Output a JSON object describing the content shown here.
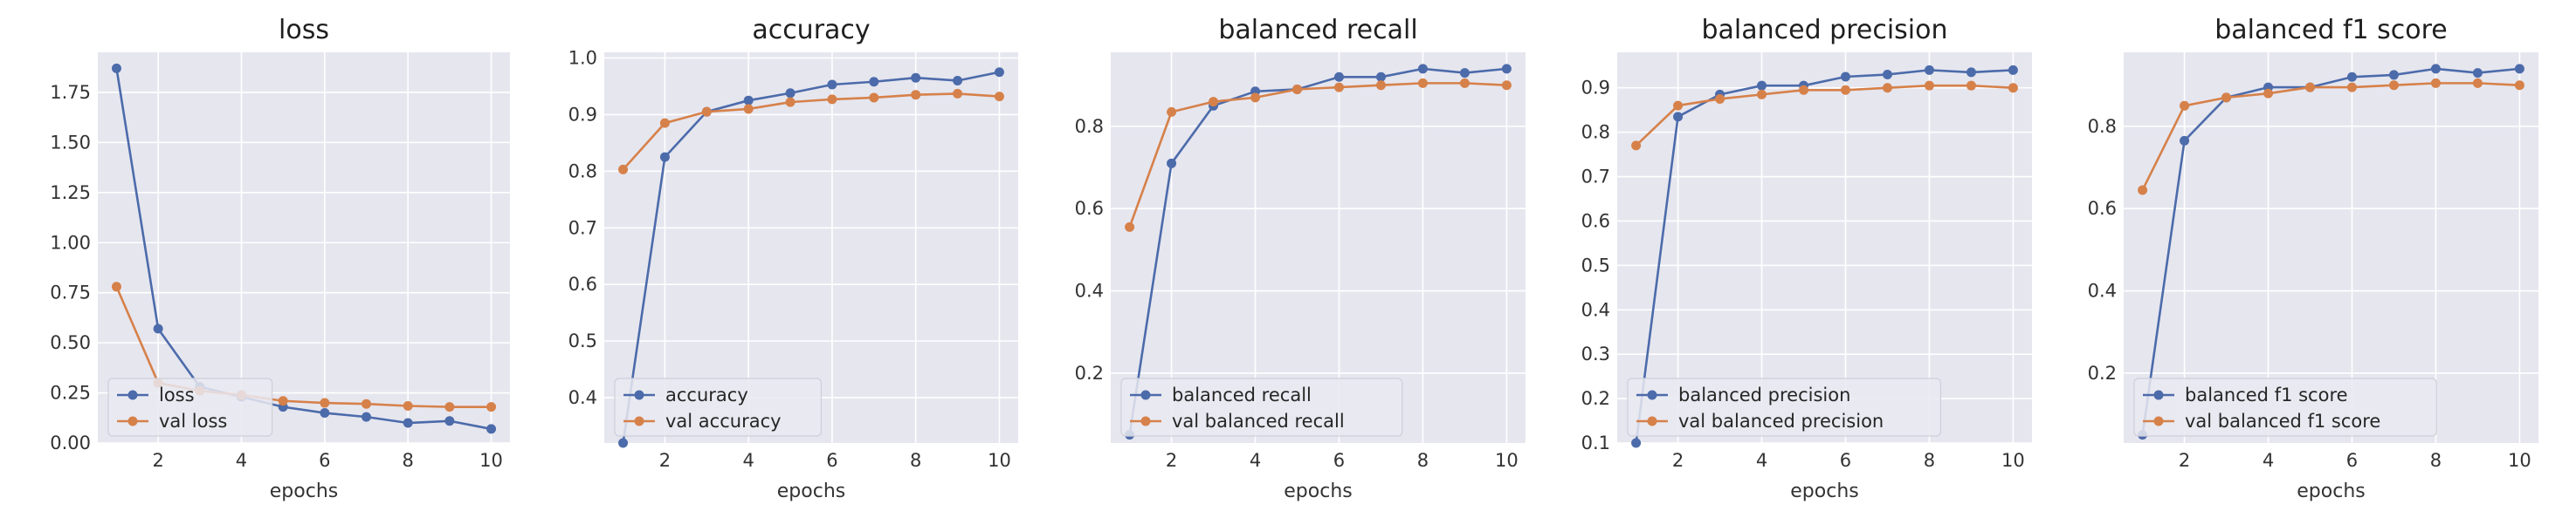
{
  "colors": {
    "train": "#4c6baa",
    "val": "#d6814a"
  },
  "chart_data": [
    {
      "type": "line",
      "title": "loss",
      "xlabel": "epochs",
      "x": [
        1,
        2,
        3,
        4,
        5,
        6,
        7,
        8,
        9,
        10
      ],
      "xticks": [
        "2",
        "4",
        "6",
        "8",
        "10"
      ],
      "ylim": [
        0.0,
        1.95
      ],
      "yticks": [
        "0.00",
        "0.25",
        "0.50",
        "0.75",
        "1.00",
        "1.25",
        "1.50",
        "1.75"
      ],
      "legend_position": "lower-left",
      "series": [
        {
          "name": "loss",
          "values": [
            1.87,
            0.57,
            0.28,
            0.23,
            0.18,
            0.15,
            0.13,
            0.1,
            0.11,
            0.07
          ]
        },
        {
          "name": "val loss",
          "values": [
            0.78,
            0.3,
            0.26,
            0.24,
            0.21,
            0.2,
            0.195,
            0.185,
            0.18,
            0.18
          ]
        }
      ]
    },
    {
      "type": "line",
      "title": "accuracy",
      "xlabel": "epochs",
      "x": [
        1,
        2,
        3,
        4,
        5,
        6,
        7,
        8,
        9,
        10
      ],
      "xticks": [
        "2",
        "4",
        "6",
        "8",
        "10"
      ],
      "ylim": [
        0.32,
        1.01
      ],
      "yticks": [
        "0.4",
        "0.5",
        "0.6",
        "0.7",
        "0.8",
        "0.9",
        "1.0"
      ],
      "legend_position": "lower-left",
      "series": [
        {
          "name": "accuracy",
          "values": [
            0.32,
            0.825,
            0.905,
            0.925,
            0.938,
            0.953,
            0.958,
            0.965,
            0.96,
            0.975
          ]
        },
        {
          "name": "val accuracy",
          "values": [
            0.803,
            0.885,
            0.905,
            0.91,
            0.922,
            0.927,
            0.93,
            0.935,
            0.937,
            0.932
          ]
        }
      ]
    },
    {
      "type": "line",
      "title": "balanced recall",
      "xlabel": "epochs",
      "x": [
        1,
        2,
        3,
        4,
        5,
        6,
        7,
        8,
        9,
        10
      ],
      "xticks": [
        "2",
        "4",
        "6",
        "8",
        "10"
      ],
      "ylim": [
        0.03,
        0.98
      ],
      "yticks": [
        "0.2",
        "0.4",
        "0.6",
        "0.8"
      ],
      "legend_position": "lower-left",
      "series": [
        {
          "name": "balanced recall",
          "values": [
            0.05,
            0.71,
            0.85,
            0.885,
            0.89,
            0.92,
            0.92,
            0.94,
            0.93,
            0.94
          ]
        },
        {
          "name": "val balanced recall",
          "values": [
            0.555,
            0.835,
            0.86,
            0.87,
            0.89,
            0.895,
            0.9,
            0.905,
            0.905,
            0.9
          ]
        }
      ]
    },
    {
      "type": "line",
      "title": "balanced precision",
      "xlabel": "epochs",
      "x": [
        1,
        2,
        3,
        4,
        5,
        6,
        7,
        8,
        9,
        10
      ],
      "xticks": [
        "2",
        "4",
        "6",
        "8",
        "10"
      ],
      "ylim": [
        0.1,
        0.98
      ],
      "yticks": [
        "0.1",
        "0.2",
        "0.3",
        "0.4",
        "0.5",
        "0.6",
        "0.7",
        "0.8",
        "0.9"
      ],
      "legend_position": "lower-left",
      "series": [
        {
          "name": "balanced precision",
          "values": [
            0.1,
            0.835,
            0.885,
            0.905,
            0.905,
            0.925,
            0.93,
            0.94,
            0.935,
            0.94
          ]
        },
        {
          "name": "val balanced precision",
          "values": [
            0.77,
            0.86,
            0.875,
            0.885,
            0.895,
            0.895,
            0.9,
            0.905,
            0.905,
            0.9
          ]
        }
      ]
    },
    {
      "type": "line",
      "title": "balanced f1 score",
      "xlabel": "epochs",
      "x": [
        1,
        2,
        3,
        4,
        5,
        6,
        7,
        8,
        9,
        10
      ],
      "xticks": [
        "2",
        "4",
        "6",
        "8",
        "10"
      ],
      "ylim": [
        0.03,
        0.98
      ],
      "yticks": [
        "0.2",
        "0.4",
        "0.6",
        "0.8"
      ],
      "legend_position": "lower-left",
      "series": [
        {
          "name": "balanced f1 score",
          "values": [
            0.05,
            0.765,
            0.87,
            0.895,
            0.895,
            0.92,
            0.925,
            0.94,
            0.93,
            0.94
          ]
        },
        {
          "name": "val balanced f1 score",
          "values": [
            0.645,
            0.85,
            0.87,
            0.88,
            0.895,
            0.895,
            0.9,
            0.905,
            0.905,
            0.9
          ]
        }
      ]
    }
  ]
}
